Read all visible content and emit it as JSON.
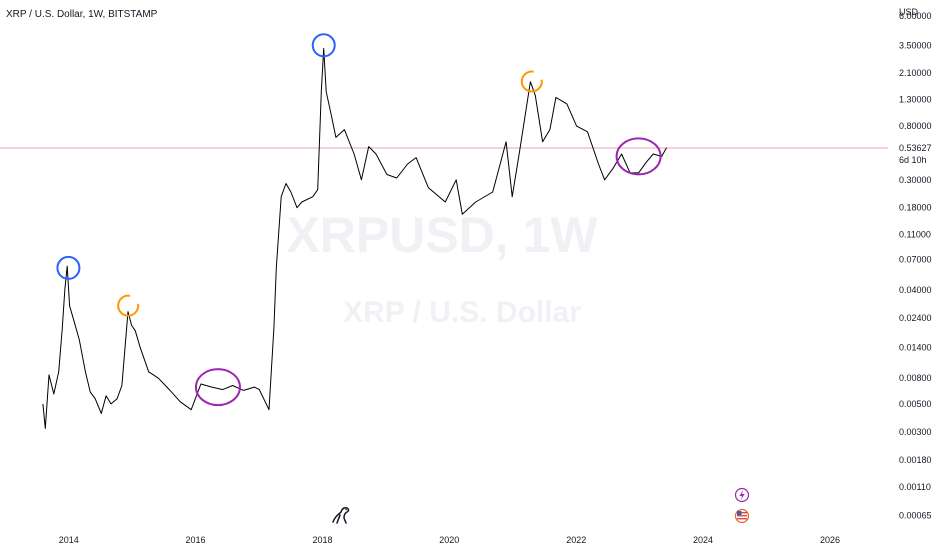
{
  "header": {
    "title": "XRP / U.S. Dollar, 1W, BITSTAMP"
  },
  "watermark": {
    "symbol": "XRPUSD, 1W",
    "description": "XRP / U.S. Dollar"
  },
  "price_axis": {
    "unit": "USD",
    "ticks": [
      "6.00000",
      "3.50000",
      "2.10000",
      "1.30000",
      "0.80000",
      "0.30000",
      "0.18000",
      "0.11000",
      "0.07000",
      "0.04000",
      "0.02400",
      "0.01400",
      "0.00800",
      "0.00500",
      "0.00300",
      "0.00180",
      "0.00110",
      "0.00065"
    ],
    "last_price": "0.53627",
    "countdown": "6d 10h"
  },
  "time_axis": {
    "ticks": [
      "2014",
      "2016",
      "2018",
      "2020",
      "2022",
      "2024",
      "2026"
    ]
  },
  "colors": {
    "price_line": "#000000",
    "last_price_line": "#f4a0a8",
    "peak_circle": "#2962ff",
    "lower_high_circle": "#ff9800",
    "range_circle": "#9c27b0",
    "lightning_badge": "#9c27b0"
  },
  "icons": {
    "logo": "dinosaur-logo-icon",
    "event1": "lightning-icon",
    "event2": "us-flag-icon"
  },
  "chart_data": {
    "type": "line",
    "y_scale": "log",
    "ylim": [
      0.0005,
      8
    ],
    "xlim": [
      "2012-12-01",
      "2026-12-01"
    ],
    "x_unit": "date",
    "series": [
      {
        "name": "",
        "points": [
          [
            "2013-08-05",
            0.005
          ],
          [
            "2013-08-19",
            0.0032
          ],
          [
            "2013-09-09",
            0.0085
          ],
          [
            "2013-10-07",
            0.006
          ],
          [
            "2013-11-04",
            0.009
          ],
          [
            "2013-11-25",
            0.02
          ],
          [
            "2013-12-09",
            0.04
          ],
          [
            "2013-12-23",
            0.062
          ],
          [
            "2014-01-06",
            0.03
          ],
          [
            "2014-02-03",
            0.022
          ],
          [
            "2014-03-03",
            0.016
          ],
          [
            "2014-04-07",
            0.009
          ],
          [
            "2014-05-05",
            0.0062
          ],
          [
            "2014-06-02",
            0.0055
          ],
          [
            "2014-07-07",
            0.0042
          ],
          [
            "2014-08-04",
            0.0058
          ],
          [
            "2014-09-01",
            0.005
          ],
          [
            "2014-10-06",
            0.0055
          ],
          [
            "2014-11-03",
            0.007
          ],
          [
            "2014-12-08",
            0.027
          ],
          [
            "2014-12-29",
            0.021
          ],
          [
            "2015-01-19",
            0.019
          ],
          [
            "2015-02-16",
            0.014
          ],
          [
            "2015-04-06",
            0.009
          ],
          [
            "2015-06-01",
            0.008
          ],
          [
            "2015-08-03",
            0.0065
          ],
          [
            "2015-10-05",
            0.0052
          ],
          [
            "2015-12-07",
            0.0045
          ],
          [
            "2016-02-01",
            0.0072
          ],
          [
            "2016-04-04",
            0.0068
          ],
          [
            "2016-06-06",
            0.0065
          ],
          [
            "2016-08-01",
            0.007
          ],
          [
            "2016-10-03",
            0.0064
          ],
          [
            "2016-12-05",
            0.0068
          ],
          [
            "2017-01-02",
            0.0065
          ],
          [
            "2017-02-27",
            0.0045
          ],
          [
            "2017-03-27",
            0.02
          ],
          [
            "2017-04-10",
            0.06
          ],
          [
            "2017-05-08",
            0.22
          ],
          [
            "2017-06-05",
            0.28
          ],
          [
            "2017-07-03",
            0.24
          ],
          [
            "2017-08-07",
            0.18
          ],
          [
            "2017-09-04",
            0.2
          ],
          [
            "2017-11-06",
            0.22
          ],
          [
            "2017-12-04",
            0.25
          ],
          [
            "2017-12-25",
            1.5
          ],
          [
            "2018-01-08",
            3.3
          ],
          [
            "2018-01-22",
            1.5
          ],
          [
            "2018-02-19",
            1.0
          ],
          [
            "2018-03-19",
            0.65
          ],
          [
            "2018-05-07",
            0.75
          ],
          [
            "2018-07-02",
            0.48
          ],
          [
            "2018-08-13",
            0.3
          ],
          [
            "2018-09-24",
            0.55
          ],
          [
            "2018-11-05",
            0.48
          ],
          [
            "2019-01-07",
            0.33
          ],
          [
            "2019-03-04",
            0.31
          ],
          [
            "2019-05-06",
            0.4
          ],
          [
            "2019-06-24",
            0.45
          ],
          [
            "2019-09-02",
            0.26
          ],
          [
            "2019-12-09",
            0.2
          ],
          [
            "2020-02-10",
            0.3
          ],
          [
            "2020-03-16",
            0.16
          ],
          [
            "2020-06-01",
            0.2
          ],
          [
            "2020-09-07",
            0.24
          ],
          [
            "2020-11-23",
            0.6
          ],
          [
            "2020-12-28",
            0.22
          ],
          [
            "2021-02-08",
            0.5
          ],
          [
            "2021-04-12",
            1.8
          ],
          [
            "2021-05-10",
            1.4
          ],
          [
            "2021-06-21",
            0.6
          ],
          [
            "2021-08-02",
            0.75
          ],
          [
            "2021-09-06",
            1.35
          ],
          [
            "2021-11-08",
            1.2
          ],
          [
            "2022-01-03",
            0.8
          ],
          [
            "2022-03-07",
            0.72
          ],
          [
            "2022-05-09",
            0.4
          ],
          [
            "2022-06-13",
            0.3
          ],
          [
            "2022-08-01",
            0.37
          ],
          [
            "2022-09-19",
            0.48
          ],
          [
            "2022-11-07",
            0.34
          ],
          [
            "2022-12-26",
            0.34
          ],
          [
            "2023-02-06",
            0.41
          ],
          [
            "2023-03-20",
            0.48
          ],
          [
            "2023-05-08",
            0.46
          ],
          [
            "2023-06-05",
            0.54
          ]
        ]
      }
    ],
    "annotations": [
      {
        "type": "circle",
        "color_key": "peak_circle",
        "x": "2013-12-30",
        "y": 0.06
      },
      {
        "type": "arc",
        "color_key": "lower_high_circle",
        "x": "2014-12-08",
        "y": 0.03
      },
      {
        "type": "ellipse",
        "color_key": "range_circle",
        "x": "2016-05-09",
        "y": 0.0068
      },
      {
        "type": "circle",
        "color_key": "peak_circle",
        "x": "2018-01-08",
        "y": 3.5
      },
      {
        "type": "arc",
        "color_key": "lower_high_circle",
        "x": "2021-04-19",
        "y": 1.8
      },
      {
        "type": "ellipse",
        "color_key": "range_circle",
        "x": "2022-12-26",
        "y": 0.46
      }
    ]
  }
}
